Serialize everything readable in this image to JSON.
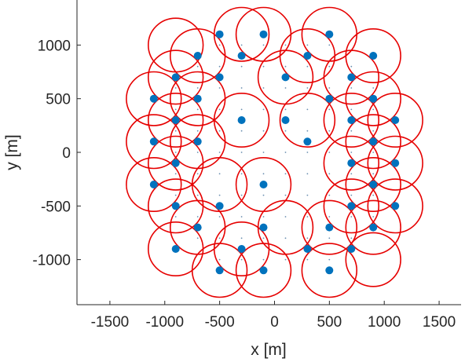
{
  "chart_data": {
    "type": "scatter",
    "title": "",
    "xlabel": "x [m]",
    "ylabel": "y [m]",
    "xlim": [
      -1800,
      1700
    ],
    "ylim": [
      -1420,
      1420
    ],
    "xticks": [
      -1500,
      -1000,
      -500,
      0,
      500,
      1000,
      1500
    ],
    "yticks": [
      -1000,
      -500,
      0,
      500,
      1000
    ],
    "xtick_labels": [
      "-1500",
      "-1000",
      "-500",
      "0",
      "500",
      "1000",
      "1500"
    ],
    "ytick_labels": [
      "-1000",
      "-500",
      "0",
      "500",
      "1000"
    ],
    "grid": false,
    "legend": "none",
    "colors": {
      "points": "#0072BD",
      "circles": "#e60000",
      "axes": "#262626"
    },
    "circle_radius": 250,
    "series": [
      {
        "marker": "filled-dot",
        "x": [
          -500,
          -100,
          500,
          -700,
          -300,
          300,
          900,
          -900,
          -500,
          100,
          700,
          -1100,
          -700,
          500,
          900,
          -900,
          -300,
          100,
          700,
          1100,
          -1100,
          -700,
          300,
          900,
          -900,
          700,
          1100,
          -1100,
          -100,
          900,
          -900,
          -500,
          700,
          1100,
          -700,
          -100,
          500,
          900,
          -900,
          -300,
          300,
          700,
          -500,
          -100,
          500
        ],
        "y": [
          1100,
          1100,
          1100,
          900,
          900,
          900,
          900,
          700,
          700,
          700,
          700,
          500,
          500,
          500,
          500,
          300,
          300,
          300,
          300,
          300,
          100,
          100,
          100,
          100,
          -100,
          -100,
          -100,
          -300,
          -300,
          -300,
          -500,
          -500,
          -500,
          -500,
          -700,
          -700,
          -700,
          -700,
          -900,
          -900,
          -900,
          -900,
          -1100,
          -1100,
          -1100
        ]
      }
    ],
    "circles_center_x": [
      -1100,
      -1100,
      -1100,
      -900,
      -900,
      -900,
      -900,
      -900,
      -900,
      -700,
      -700,
      -700,
      -700,
      -500,
      -500,
      -300,
      -300,
      -300,
      -100,
      -100,
      -100,
      100,
      100,
      300,
      300,
      500,
      500,
      500,
      700,
      700,
      700,
      700,
      900,
      900,
      900,
      900,
      900,
      900,
      1100,
      1100,
      1100
    ],
    "circles_center_y": [
      500,
      100,
      -300,
      700,
      300,
      -100,
      -500,
      -900,
      1000,
      900,
      500,
      100,
      -700,
      -300,
      -1100,
      1100,
      300,
      -900,
      1100,
      -300,
      -1100,
      700,
      -700,
      900,
      300,
      1100,
      -700,
      -1100,
      700,
      300,
      -100,
      -500,
      900,
      500,
      100,
      -300,
      -700,
      -1000,
      300,
      -100,
      -500
    ]
  }
}
